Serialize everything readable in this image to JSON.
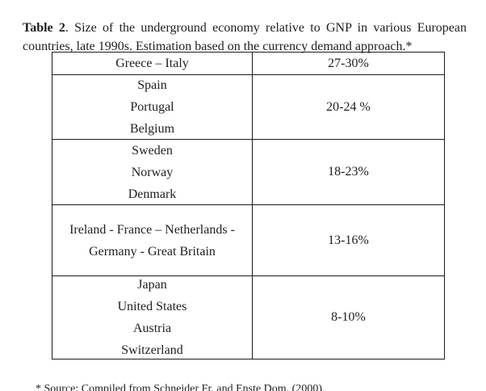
{
  "caption": {
    "label": "Table 2",
    "rest": ". Size of the underground economy relative to GNP in various European countries, late 1990s. Estimation based on the currency demand approach.*"
  },
  "table": {
    "columns": [
      "countries",
      "share_of_gnp"
    ],
    "rows": [
      {
        "countries": [
          "Greece – Italy"
        ],
        "value": "27-30%"
      },
      {
        "countries": [
          "Spain",
          "Portugal",
          "Belgium"
        ],
        "value": "20-24 %"
      },
      {
        "countries": [
          "Sweden",
          "Norway",
          "Denmark"
        ],
        "value": "18-23%"
      },
      {
        "countries": [
          "Ireland - France – Netherlands -",
          "Germany - Great Britain"
        ],
        "value": "13-16%"
      },
      {
        "countries": [
          "Japan",
          "United States",
          "Austria",
          "Switzerland"
        ],
        "value": "8-10%"
      }
    ]
  },
  "footnote": "* Source: Compiled from Schneider Fr. and Enste Dom. (2000).",
  "colors": {
    "text": "#1e1e1e",
    "border": "#1c1c1c",
    "background": "#ffffff"
  }
}
